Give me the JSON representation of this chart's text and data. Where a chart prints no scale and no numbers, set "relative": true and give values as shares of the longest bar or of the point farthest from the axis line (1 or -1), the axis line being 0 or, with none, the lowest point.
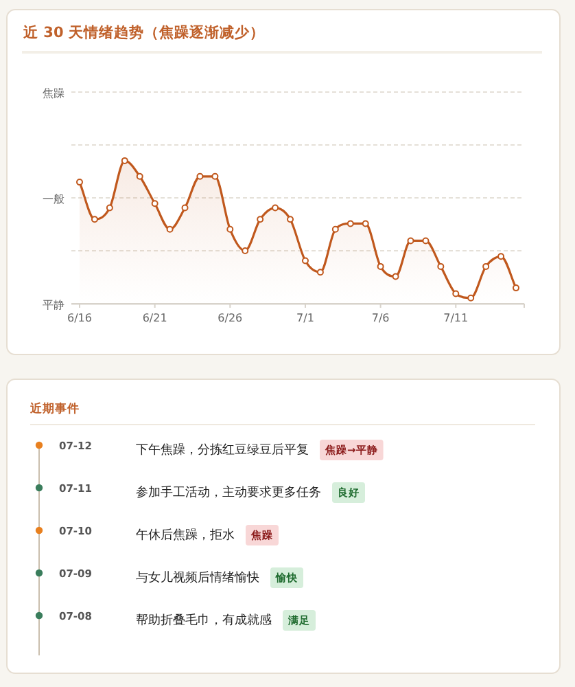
{
  "chart_data": [
    {
      "type": "area",
      "title": "近 30 天情绪趋势（焦躁逐渐减少）",
      "categories": [
        "6/16",
        null,
        null,
        null,
        null,
        "6/21",
        null,
        null,
        null,
        null,
        "6/26",
        null,
        null,
        null,
        null,
        "7/1",
        null,
        null,
        null,
        null,
        "7/6",
        null,
        null,
        null,
        null,
        "7/11",
        null,
        null,
        null,
        null
      ],
      "series": [
        {
          "color": "#c0581d",
          "values": [
            0.85,
            0.59,
            0.67,
            1,
            0.89,
            0.7,
            0.52,
            0.67,
            0.89,
            0.89,
            0.52,
            0.37,
            0.59,
            0.67,
            0.59,
            0.3,
            0.22,
            0.52,
            0.56,
            0.56,
            0.26,
            0.19,
            0.44,
            0.44,
            0.26,
            0.07,
            0.04,
            0.26,
            0.33,
            0.11
          ]
        }
      ],
      "relative": true,
      "ref_lines": [
        {
          "axis": "y",
          "value": 1.48,
          "label": "焦躁",
          "line_style": "dashed"
        },
        {
          "axis": "y",
          "value": 1.11,
          "label": null,
          "line_style": "dashed"
        },
        {
          "axis": "y",
          "value": 0.74,
          "label": "一般",
          "line_style": "dashed"
        },
        {
          "axis": "y",
          "value": 0.37,
          "label": null,
          "line_style": "dashed"
        },
        {
          "axis": "y",
          "value": 0,
          "label": "平静",
          "line_style": "solid"
        }
      ],
      "marker": "circle"
    },
    {
      "type": "other",
      "title": "近期事件",
      "annotations": [
        "07-12",
        "下午焦躁，分拣红豆绿豆后平复",
        "焦躁→平静",
        "07-11",
        "参加手工活动，主动要求更多任务",
        "良好",
        "07-10",
        "午休后焦躁，拒水",
        "焦躁",
        "07-09",
        "与女儿视频后情绪愉快",
        "愉快",
        "07-08",
        "帮助折叠毛巾，有成就感",
        "满足"
      ],
      "colors": [
        "#e8801f",
        "#3a7d5c",
        "#e8801f",
        "#3a7d5c",
        "#3a7d5c"
      ]
    }
  ]
}
